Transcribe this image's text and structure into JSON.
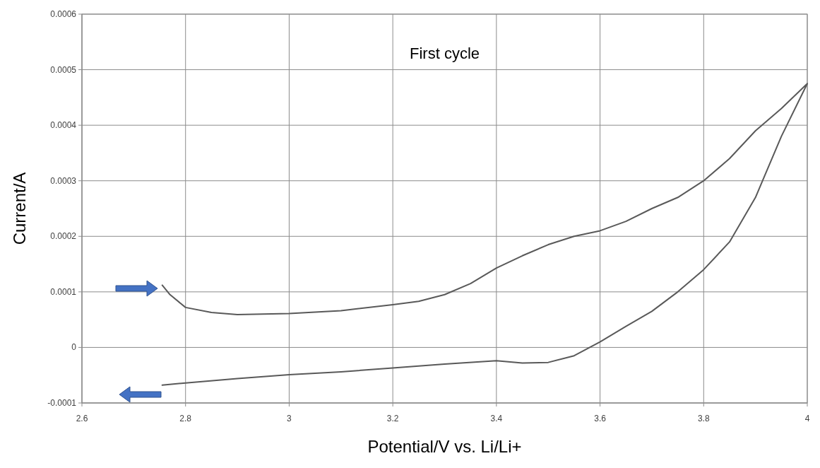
{
  "chart_data": {
    "type": "line",
    "title": "First cycle",
    "xlabel": "Potential/V vs. Li/Li+",
    "ylabel": "Current/A",
    "xlim": [
      2.6,
      4
    ],
    "xticks": [
      2.6,
      2.8,
      3,
      3.2,
      3.4,
      3.6,
      3.8,
      4
    ],
    "ylim": [
      -0.0001,
      0.0006
    ],
    "yticks": [
      -0.0001,
      0,
      0.0001,
      0.0002,
      0.0003,
      0.0004,
      0.0005,
      0.0006
    ],
    "grid": true,
    "marker": "none",
    "line_style": "solid",
    "series": [
      {
        "color": "#595959",
        "x": [
          2.755,
          2.77,
          2.8,
          2.85,
          2.9,
          3.0,
          3.1,
          3.2,
          3.25,
          3.3,
          3.35,
          3.4,
          3.45,
          3.5,
          3.55,
          3.6,
          3.65,
          3.7,
          3.75,
          3.8,
          3.85,
          3.9,
          3.95,
          4.0,
          3.95,
          3.9,
          3.85,
          3.8,
          3.75,
          3.7,
          3.65,
          3.6,
          3.55,
          3.5,
          3.45,
          3.4,
          3.3,
          3.2,
          3.1,
          3.0,
          2.9,
          2.8,
          2.755
        ],
        "values": [
          0.000112,
          9.5e-05,
          7.2e-05,
          6.3e-05,
          5.9e-05,
          6.1e-05,
          6.6e-05,
          7.7e-05,
          8.3e-05,
          9.5e-05,
          0.000115,
          0.000143,
          0.000165,
          0.000185,
          0.0002,
          0.00021,
          0.000227,
          0.00025,
          0.00027,
          0.0003,
          0.00034,
          0.00039,
          0.00043,
          0.000475,
          0.00038,
          0.00027,
          0.00019,
          0.00014,
          0.0001,
          6.5e-05,
          3.8e-05,
          1e-05,
          -1.5e-05,
          -2.7e-05,
          -2.8e-05,
          -2.4e-05,
          -3e-05,
          -3.7e-05,
          -4.4e-05,
          -4.9e-05,
          -5.6e-05,
          -6.4e-05,
          -6.8e-05
        ]
      }
    ]
  }
}
